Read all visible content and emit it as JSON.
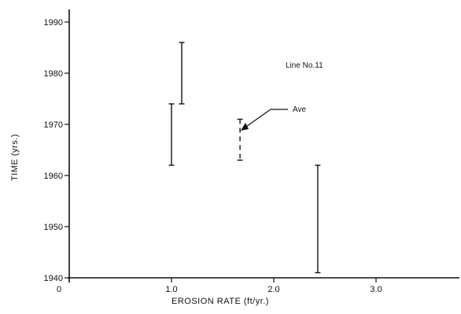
{
  "chart_data": {
    "type": "errorbar",
    "title": "",
    "xlabel": "EROSION RATE (ft/yr.)",
    "ylabel": "TIME (yrs.)",
    "xlim": [
      0,
      3.8
    ],
    "ylim": [
      1940,
      1993
    ],
    "x_ticks": [
      {
        "value": 0,
        "label": "0"
      },
      {
        "value": 1.0,
        "label": "1.0"
      },
      {
        "value": 2.0,
        "label": "2.0"
      },
      {
        "value": 3.0,
        "label": "3.0"
      }
    ],
    "y_ticks": [
      {
        "value": 1940,
        "label": "1940"
      },
      {
        "value": 1950,
        "label": "1950"
      },
      {
        "value": 1960,
        "label": "1960"
      },
      {
        "value": 1970,
        "label": "1970"
      },
      {
        "value": 1980,
        "label": "1980"
      },
      {
        "value": 1990,
        "label": "1990"
      }
    ],
    "intervals": [
      {
        "x": 1.0,
        "y_low": 1962,
        "y_high": 1974,
        "style": "solid"
      },
      {
        "x": 1.1,
        "y_low": 1974,
        "y_high": 1986,
        "style": "solid"
      },
      {
        "x": 1.67,
        "y_low": 1963,
        "y_high": 1971,
        "style": "dashed"
      },
      {
        "x": 2.43,
        "y_low": 1941,
        "y_high": 1962,
        "style": "solid"
      }
    ],
    "annotations": {
      "line_label": "Line No.11",
      "average_label": "Ave"
    },
    "grid": false,
    "legend": "none"
  }
}
